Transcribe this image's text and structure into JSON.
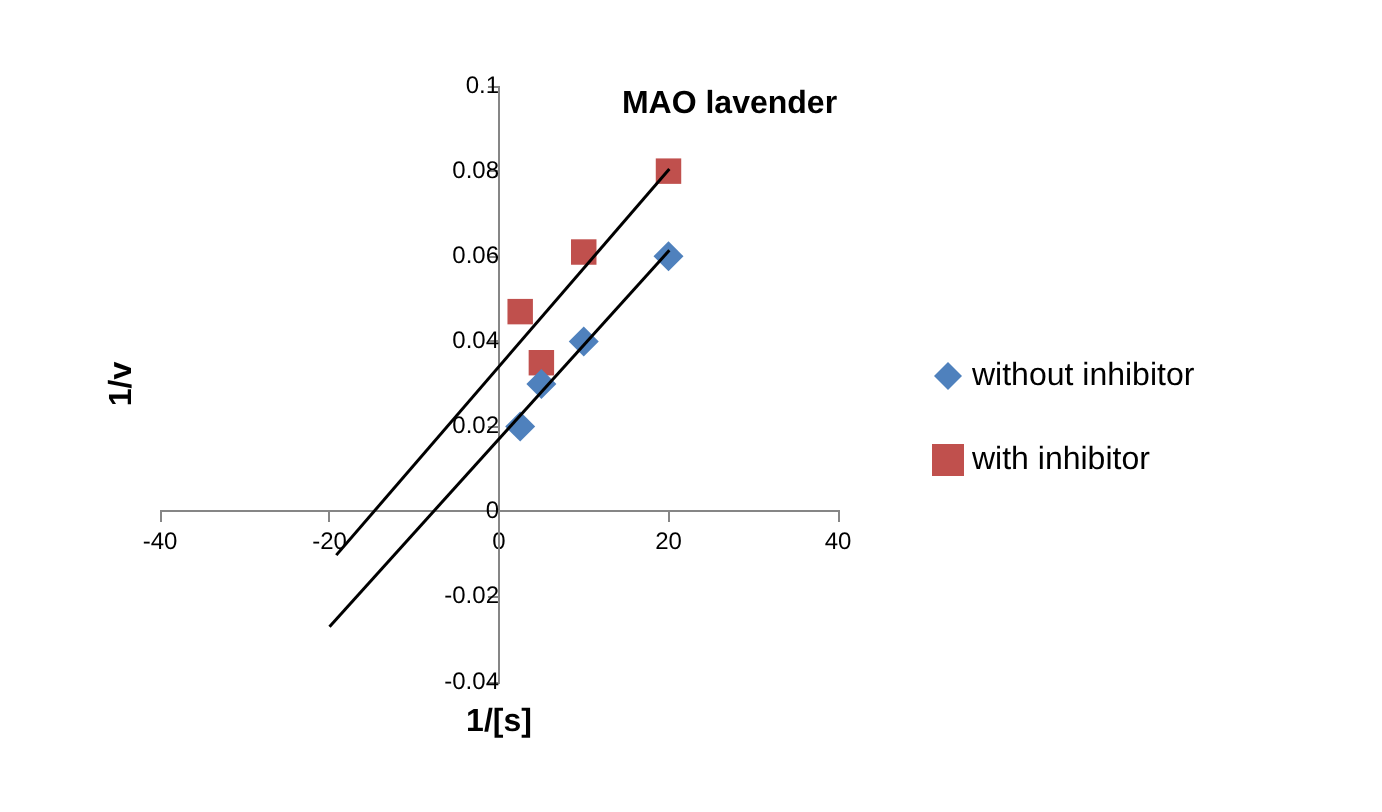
{
  "chart_data": {
    "type": "scatter",
    "title": "MAO lavender",
    "xlabel": "1/[s]",
    "ylabel": "1/v",
    "x": [
      2.5,
      5,
      10,
      20
    ],
    "series": [
      {
        "name": "without inhibitor",
        "color": "#4f81bd",
        "marker": "diamond",
        "values": [
          0.02,
          0.03,
          0.04,
          0.06
        ]
      },
      {
        "name": "with inhibitor",
        "color": "#c0504d",
        "marker": "square",
        "values": [
          0.047,
          0.035,
          0.061,
          0.08
        ]
      },
      {
        "type": "line",
        "color": "#000000",
        "marker": "none",
        "x": [
          -19.2,
          20.1
        ],
        "values": [
          -0.0102,
          0.0805
        ]
      },
      {
        "type": "line",
        "color": "#000000",
        "marker": "none",
        "x": [
          -20,
          20.1
        ],
        "values": [
          -0.027,
          0.0614
        ]
      }
    ],
    "xlim": [
      -40,
      40
    ],
    "xticks": [
      -40,
      -20,
      0,
      20,
      40
    ],
    "ylim": [
      -0.04,
      0.1
    ],
    "yticks": [
      -0.04,
      -0.02,
      0,
      0.02,
      0.04,
      0.06,
      0.08,
      0.1
    ],
    "grid": false,
    "legend": "right"
  }
}
